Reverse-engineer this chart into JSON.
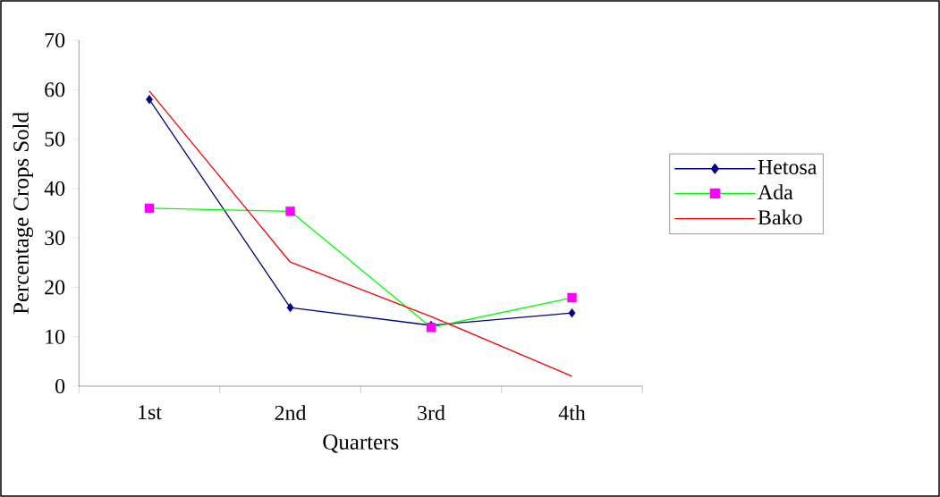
{
  "chart_data": {
    "type": "line",
    "xlabel": "Quarters",
    "ylabel": "Percentage Crops Sold",
    "categories": [
      "1st",
      "2nd",
      "3rd",
      "4th"
    ],
    "series": [
      {
        "name": "Hetosa",
        "color": "#000080",
        "marker": "diamond",
        "values": [
          58.0,
          15.9,
          12.3,
          14.8
        ]
      },
      {
        "name": "Ada",
        "color": "#00ff00",
        "colors": [
          "#ff00ff",
          "#ff00ff",
          "#ff00ff",
          "#ff00ff"
        ],
        "marker": "square",
        "values": [
          36.0,
          35.4,
          11.9,
          17.9
        ]
      },
      {
        "name": "Bako",
        "color": "#ff0000",
        "marker": "none",
        "values": [
          59.7,
          25.1,
          14.1,
          2.0
        ]
      }
    ],
    "ylim": [
      0,
      70
    ],
    "yticks": [
      0,
      10,
      20,
      30,
      40,
      50,
      60,
      70
    ],
    "grid": false,
    "legend": "right"
  }
}
